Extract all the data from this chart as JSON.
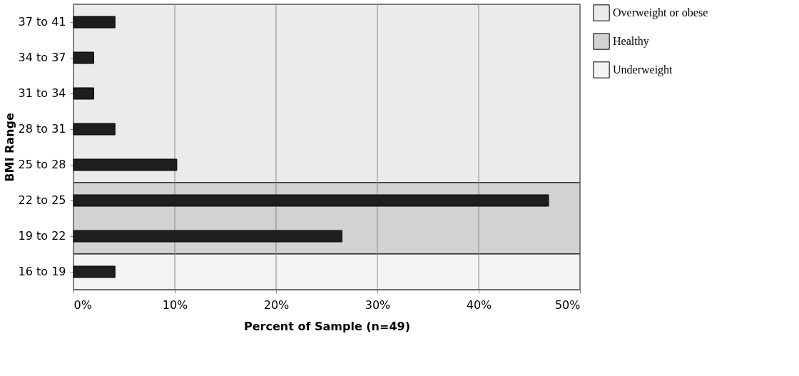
{
  "chart_data": {
    "type": "bar",
    "orientation": "horizontal",
    "xlabel": "Percent of Sample (n=49)",
    "ylabel": "BMI Range",
    "categories": [
      "37 to 41",
      "34 to 37",
      "31 to 34",
      "28 to 31",
      "25 to 28",
      "22 to 25",
      "19 to 22",
      "16 to 19"
    ],
    "values": [
      4.1,
      2.0,
      2.0,
      4.1,
      10.2,
      46.9,
      26.5,
      4.1
    ],
    "color": "#1e1e1e",
    "xlim": [
      0,
      50
    ],
    "xticks": [
      {
        "value": 0,
        "label": "0%"
      },
      {
        "value": 10,
        "label": "10%"
      },
      {
        "value": 20,
        "label": "20%"
      },
      {
        "value": 30,
        "label": "30%"
      },
      {
        "value": 40,
        "label": "40%"
      },
      {
        "value": 50,
        "label": "50%"
      }
    ],
    "bands": [
      {
        "axis": "y",
        "from": "37 to 41",
        "to": "25 to 28",
        "label": "Overweight or obese",
        "color": "#ebebeb"
      },
      {
        "axis": "y",
        "from": "22 to 25",
        "to": "19 to 22",
        "label": "Healthy",
        "color": "#d2d2d2"
      },
      {
        "axis": "y",
        "from": "16 to 19",
        "to": "16 to 19",
        "label": "Underweight",
        "color": "#f3f3f3"
      }
    ],
    "grid": "x",
    "legend": "right"
  }
}
